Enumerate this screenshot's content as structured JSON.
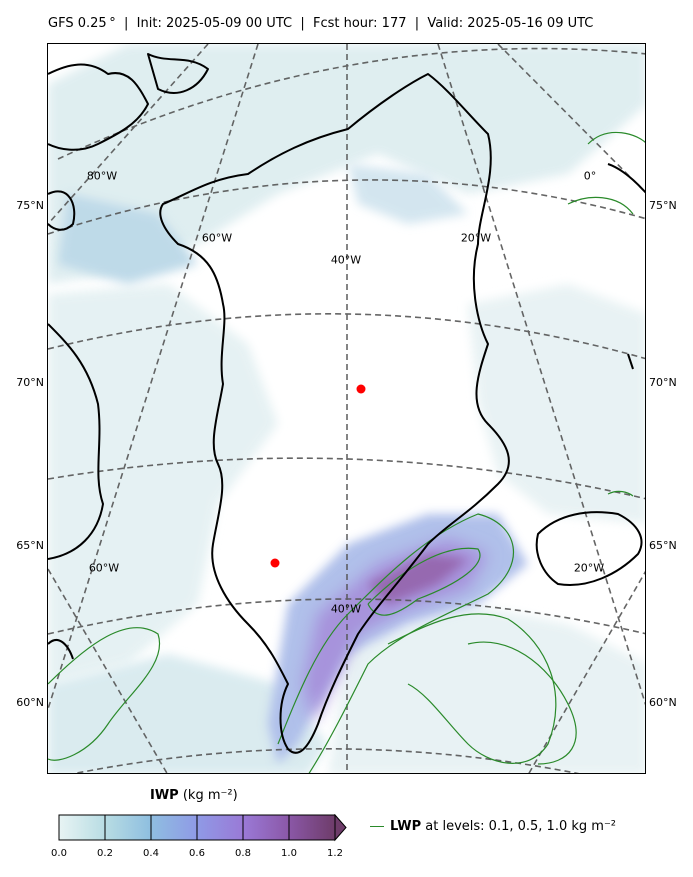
{
  "header": {
    "title": "GFS 0.25$^\\circ$  |  Init: 2025-05-09 00 UTC  |  Fcst hour: 177  |  Valid: 2025-05-16 09 UTC",
    "title_display": "GFS 0.25 °  |  Init: 2025-05-09 00 UTC  |  Fcst hour: 177  |  Valid: 2025-05-16 09 UTC"
  },
  "map": {
    "region": "Greenland",
    "lat_labels_left": [
      "75°N",
      "70°N",
      "65°N",
      "60°N"
    ],
    "lat_labels_right": [
      "75°N",
      "70°N",
      "65°N",
      "60°N"
    ],
    "lon_labels": [
      "80°W",
      "0°",
      "60°W",
      "20°W",
      "40°W",
      "60°W",
      "20°W",
      "40°W"
    ],
    "markers": [
      {
        "name": "station-1",
        "color": "#ff0000"
      },
      {
        "name": "station-2",
        "color": "#ff0000"
      }
    ],
    "gridline_color": "#555555",
    "coastline_color": "#000000",
    "lwp_contour_color": "#2a8a2a"
  },
  "colorbar": {
    "label_var": "IWP",
    "label_units": " (kg m⁻²)",
    "ticks": [
      "0.0",
      "0.2",
      "0.4",
      "0.6",
      "0.8",
      "1.0",
      "1.2"
    ],
    "colors": [
      "#e8f4f4",
      "#b7dce3",
      "#8fbfe0",
      "#8f9ae6",
      "#9a79d6",
      "#8b58a8",
      "#6e3c6a"
    ],
    "extend": "max"
  },
  "legend": {
    "var": "LWP",
    "text": " at levels: 0.1, 0.5, 1.0  kg m⁻²",
    "color": "#2a8a2a"
  }
}
